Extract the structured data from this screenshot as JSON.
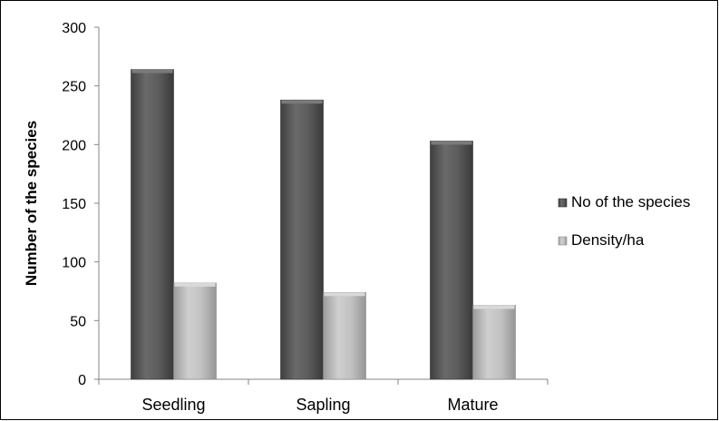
{
  "chart_data": {
    "type": "bar",
    "categories": [
      "Seedling",
      "Sapling",
      "Mature"
    ],
    "series": [
      {
        "name": "No of the species",
        "values": [
          264,
          238,
          203
        ],
        "color": "#595959"
      },
      {
        "name": "Density/ha",
        "values": [
          82,
          74,
          63
        ],
        "color": "#b3b3b3"
      }
    ],
    "title": "",
    "xlabel": "",
    "ylabel": "Number of the species",
    "ylim": [
      0,
      300
    ],
    "yticks": [
      "0",
      "50",
      "100",
      "150",
      "200",
      "250",
      "300"
    ],
    "legend_position": "right",
    "grid": false
  }
}
